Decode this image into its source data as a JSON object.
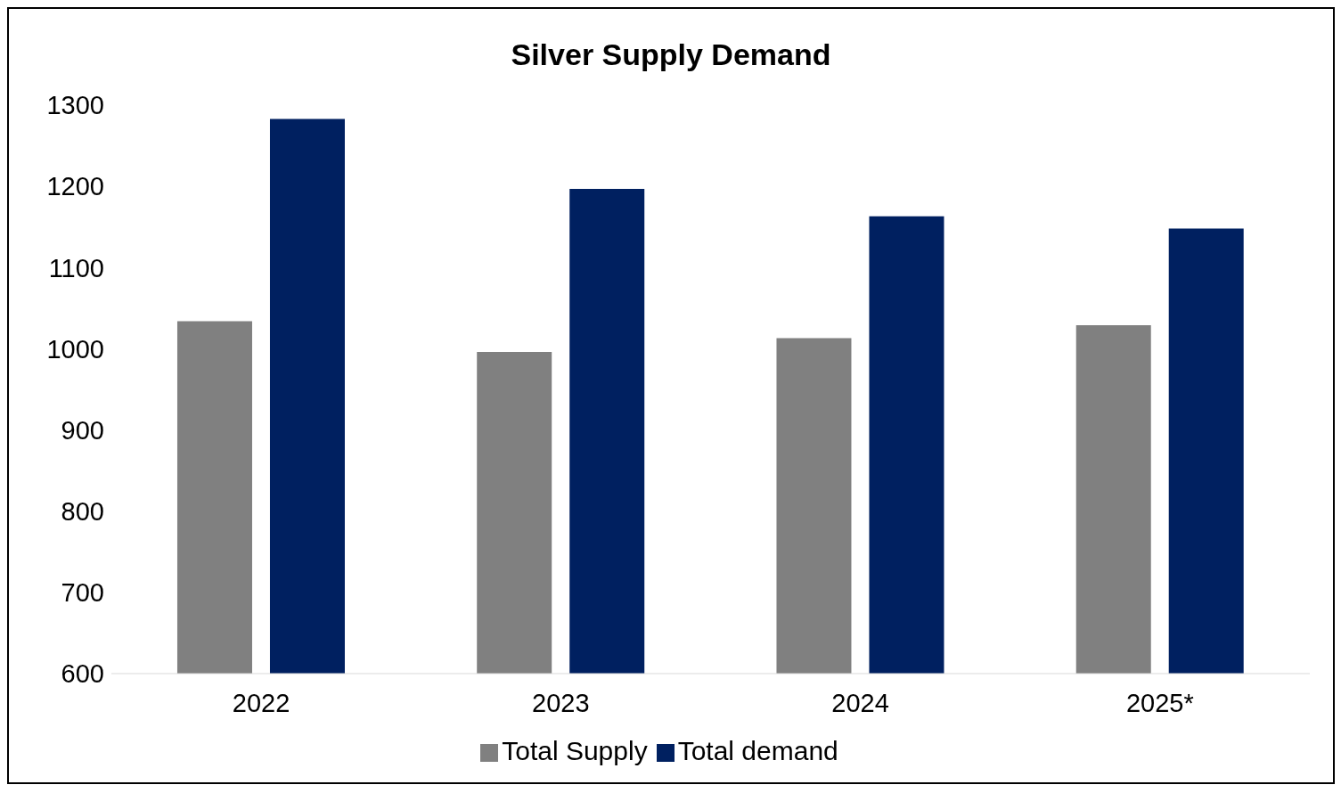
{
  "chart_data": {
    "type": "bar",
    "title": "Silver Supply Demand",
    "categories": [
      "2022",
      "2023",
      "2024",
      "2025*"
    ],
    "series": [
      {
        "name": "Total Supply",
        "color": "#808080",
        "values": [
          1034,
          996,
          1013,
          1029
        ]
      },
      {
        "name": "Total demand",
        "color": "#002060",
        "values": [
          1283,
          1197,
          1163,
          1148
        ]
      }
    ],
    "ylim": [
      600,
      1300
    ],
    "yticks": [
      600,
      700,
      800,
      900,
      1000,
      1100,
      1200,
      1300
    ],
    "grid": false,
    "legend": "bottom"
  }
}
